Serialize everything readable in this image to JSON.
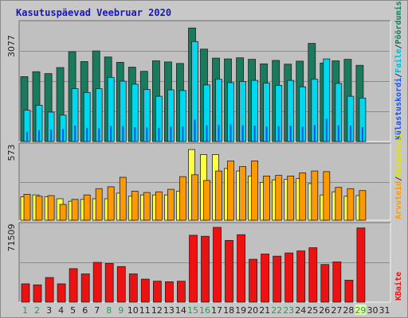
{
  "title": "Kasutuspäevad Veebruar 2020",
  "colors": {
    "pages": "#1a7a5e",
    "files": "#00d8f0",
    "visits": "#ff9900",
    "sites": "#ffff44",
    "kbytes": "#ee1111",
    "hits_line": "#1a50ee",
    "weekday_label": "#222222",
    "weekend_label": "#2e9a5a",
    "today_highlight": "#e0ffa0"
  },
  "legend": {
    "pages": "Pöördumisi",
    "sep1": "/",
    "files": "Faile",
    "sep2": "/",
    "hits": "Külastuskordi",
    "visits": "Külastusi",
    "sep3": "/",
    "sites": "Arvuteid",
    "kbytes": "KBaite"
  },
  "chart_data": {
    "type": "bar",
    "title": "Kasutuspäevad Veebruar 2020",
    "categories": [
      "1",
      "2",
      "3",
      "4",
      "5",
      "6",
      "7",
      "8",
      "9",
      "10",
      "11",
      "12",
      "13",
      "14",
      "15",
      "16",
      "17",
      "18",
      "19",
      "20",
      "21",
      "22",
      "23",
      "24",
      "25",
      "26",
      "27",
      "28",
      "29",
      "30",
      "31"
    ],
    "weekend_days": [
      "1",
      "2",
      "8",
      "9",
      "15",
      "16",
      "22",
      "23",
      "29"
    ],
    "panels": [
      {
        "name": "hits",
        "max_label": "3077",
        "ylim": [
          0,
          3077
        ],
        "series": [
          {
            "name": "Pöördumisi",
            "color": "#1a7a5e",
            "values": [
              1720,
              1850,
              1800,
              1960,
              2380,
              2120,
              2400,
              2240,
              2100,
              1970,
              1860,
              2140,
              2110,
              2070,
              3010,
              2450,
              2210,
              2190,
              2220,
              2180,
              2060,
              2150,
              2050,
              2130,
              2600,
              2080,
              2140,
              2180,
              2020,
              null,
              null
            ]
          },
          {
            "name": "Faile",
            "color": "#00d8f0",
            "values": [
              830,
              960,
              780,
              700,
              1400,
              1300,
              1400,
              1700,
              1600,
              1520,
              1380,
              1200,
              1370,
              1350,
              2650,
              1500,
              1650,
              1560,
              1590,
              1620,
              1550,
              1490,
              1620,
              1450,
              1650,
              2190,
              1540,
              1200,
              1150,
              null,
              null
            ]
          },
          {
            "name": "Külastuskordi",
            "color": "#1a50ee",
            "values": [
              260,
              300,
              320,
              330,
              420,
              360,
              350,
              420,
              410,
              380,
              370,
              360,
              390,
              400,
              580,
              430,
              440,
              450,
              430,
              420,
              400,
              410,
              420,
              390,
              440,
              600,
              430,
              420,
              380,
              null,
              null
            ]
          }
        ]
      },
      {
        "name": "visits",
        "max_label": "573",
        "ylim": [
          0,
          573
        ],
        "series": [
          {
            "name": "Arvuteid",
            "color": "#ffff44",
            "values": [
              185,
              200,
              185,
              170,
              150,
              165,
              170,
              170,
              215,
              190,
              200,
              200,
              200,
              230,
              560,
              520,
              520,
              410,
              390,
              350,
              300,
              320,
              325,
              330,
              290,
              200,
              225,
              190,
              195,
              null,
              null
            ]
          },
          {
            "name": "Külastusi",
            "color": "#ff9900",
            "values": [
              205,
              190,
              195,
              125,
              165,
              200,
              250,
              265,
              340,
              230,
              220,
              225,
              245,
              345,
              360,
              315,
              390,
              470,
              425,
              470,
              350,
              355,
              350,
              375,
              390,
              385,
              260,
              250,
              235,
              null,
              null
            ]
          }
        ]
      },
      {
        "name": "kbytes",
        "max_label": "71509",
        "ylim": [
          0,
          71509
        ],
        "series": [
          {
            "name": "KBaite",
            "color": "#ee1111",
            "values": [
              17500,
              16500,
              23500,
              17500,
              32000,
              27000,
              38000,
              37000,
              34000,
              27000,
              22000,
              20000,
              19500,
              20000,
              64000,
              63000,
              71509,
              59000,
              64500,
              41000,
              46000,
              44000,
              47000,
              49000,
              52000,
              36000,
              38500,
              21000,
              71000,
              null,
              null
            ]
          }
        ]
      }
    ]
  }
}
